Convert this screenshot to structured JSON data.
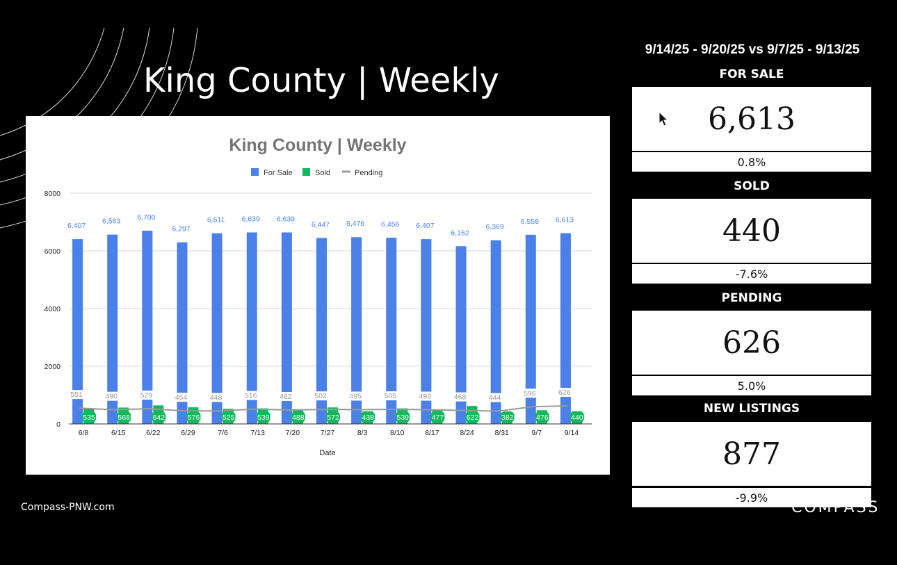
{
  "page_title": "King County | Weekly",
  "footer_url": "Compass-PNW.com",
  "brand": "COMPASS",
  "date_range": "9/14/25 - 9/20/25 vs 9/7/25 - 9/13/25",
  "stats": {
    "for_sale": {
      "label": "FOR SALE",
      "value": "6,613",
      "change": "0.8%"
    },
    "sold": {
      "label": "SOLD",
      "value": "440",
      "change": "-7.6%"
    },
    "pending": {
      "label": "PENDING",
      "value": "626",
      "change": "5.0%"
    },
    "new_listings": {
      "label": "NEW LISTINGS",
      "value": "877",
      "change": "-9.9%"
    }
  },
  "colors": {
    "for_sale": "#4a80e8",
    "sold": "#12b85a",
    "pending": "#999999",
    "title_gray": "#757575"
  },
  "chart_data": {
    "type": "bar",
    "title": "King County | Weekly",
    "xlabel": "Date",
    "ylabel": "",
    "ylim": [
      0,
      8000
    ],
    "yticks": [
      0,
      2000,
      4000,
      6000,
      8000
    ],
    "grid": true,
    "legend_position": "top",
    "categories": [
      "6/8",
      "6/15",
      "6/22",
      "6/29",
      "7/6",
      "7/13",
      "7/20",
      "7/27",
      "8/3",
      "8/10",
      "8/17",
      "8/24",
      "8/31",
      "9/7",
      "9/14"
    ],
    "series": [
      {
        "name": "For Sale",
        "type": "bar",
        "values": [
          6407,
          6563,
          6700,
          6297,
          6611,
          6639,
          6639,
          6447,
          6476,
          6456,
          6407,
          6162,
          6369,
          6558,
          6613
        ]
      },
      {
        "name": "Sold",
        "type": "bar",
        "values": [
          535,
          568,
          642,
          576,
          525,
          539,
          488,
          572,
          438,
          539,
          477,
          622,
          382,
          476,
          440
        ]
      },
      {
        "name": "Pending",
        "type": "line",
        "values": [
          551,
          490,
          529,
          454,
          448,
          516,
          482,
          502,
          495,
          505,
          493,
          468,
          444,
          596,
          626
        ]
      }
    ]
  }
}
